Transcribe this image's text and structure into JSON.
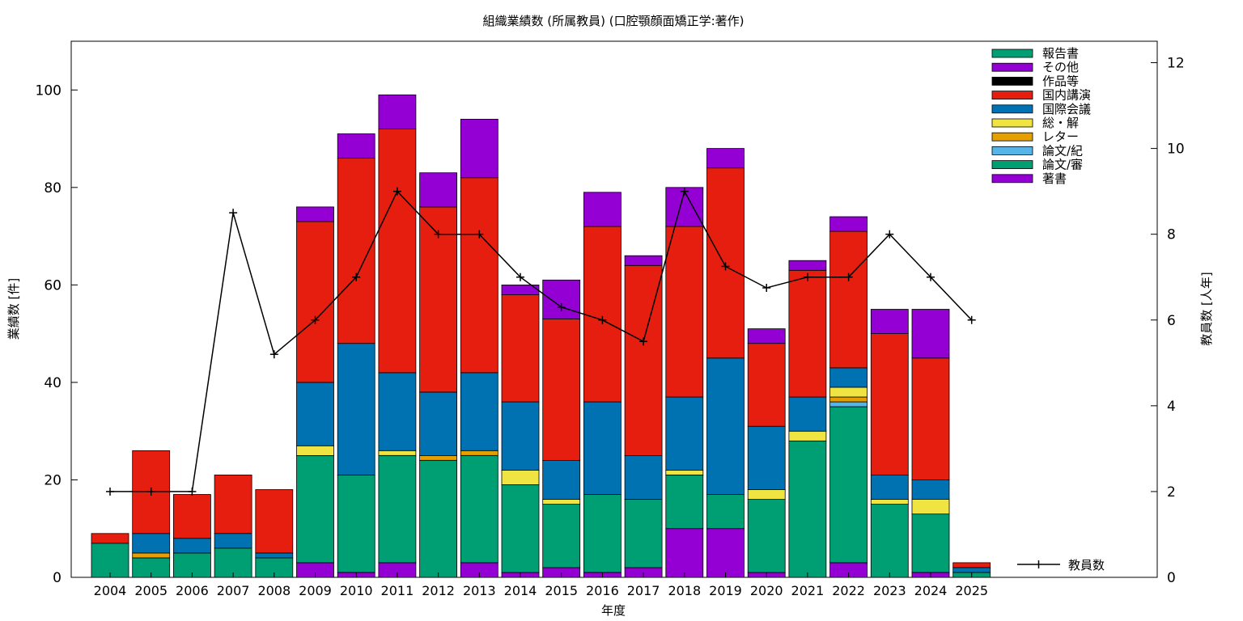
{
  "chart_data": {
    "type": "bar",
    "stacked": true,
    "title": "組織業績数 (所属教員) (口腔顎顔面矯正学:著作)",
    "xlabel": "年度",
    "ylabel": "業績数 [件]",
    "y2label": "教員数 [人年]",
    "ylim": [
      0,
      110
    ],
    "y2lim": [
      0,
      12.5
    ],
    "yticks": [
      0,
      20,
      40,
      60,
      80,
      100
    ],
    "y2ticks": [
      0,
      2,
      4,
      6,
      8,
      10,
      12
    ],
    "grid": false,
    "legend_position": "top-right",
    "categories": [
      "2004",
      "2005",
      "2006",
      "2007",
      "2008",
      "2009",
      "2010",
      "2011",
      "2012",
      "2013",
      "2014",
      "2015",
      "2016",
      "2017",
      "2018",
      "2019",
      "2020",
      "2021",
      "2022",
      "2023",
      "2024",
      "2025"
    ],
    "series": [
      {
        "name": "著書",
        "color": "#9400d3",
        "values": [
          0,
          0,
          0,
          0,
          0,
          3,
          1,
          3,
          0,
          3,
          1,
          2,
          1,
          2,
          10,
          10,
          1,
          0,
          3,
          0,
          1,
          0
        ]
      },
      {
        "name": "論文/審",
        "color": "#009e73",
        "values": [
          7,
          4,
          5,
          6,
          4,
          22,
          20,
          22,
          24,
          22,
          18,
          13,
          16,
          14,
          11,
          7,
          15,
          28,
          32,
          15,
          12,
          1
        ]
      },
      {
        "name": "論文/紀",
        "color": "#56b4e9",
        "values": [
          0,
          0,
          0,
          0,
          0,
          0,
          0,
          0,
          0,
          0,
          0,
          0,
          0,
          0,
          0,
          0,
          0,
          0,
          1,
          0,
          0,
          0
        ]
      },
      {
        "name": "レター",
        "color": "#e69f00",
        "values": [
          0,
          1,
          0,
          0,
          0,
          0,
          0,
          0,
          1,
          1,
          0,
          0,
          0,
          0,
          0,
          0,
          0,
          0,
          1,
          0,
          0,
          0
        ]
      },
      {
        "name": "総・解",
        "color": "#f0e442",
        "values": [
          0,
          0,
          0,
          0,
          0,
          2,
          0,
          1,
          0,
          0,
          3,
          1,
          0,
          0,
          1,
          0,
          2,
          2,
          2,
          1,
          3,
          0
        ]
      },
      {
        "name": "国際会議",
        "color": "#0072b2",
        "values": [
          0,
          4,
          3,
          3,
          1,
          13,
          27,
          16,
          13,
          16,
          14,
          8,
          19,
          9,
          15,
          28,
          13,
          7,
          4,
          5,
          4,
          1
        ]
      },
      {
        "name": "国内講演",
        "color": "#e51e10",
        "values": [
          2,
          17,
          9,
          12,
          13,
          33,
          38,
          50,
          38,
          40,
          22,
          29,
          36,
          39,
          35,
          39,
          17,
          26,
          28,
          29,
          25,
          1
        ]
      },
      {
        "name": "作品等",
        "color": "#000000",
        "values": [
          0,
          0,
          0,
          0,
          0,
          0,
          0,
          0,
          0,
          0,
          0,
          0,
          0,
          0,
          0,
          0,
          0,
          0,
          0,
          0,
          0,
          0
        ]
      },
      {
        "name": "その他",
        "color": "#9400d3",
        "values": [
          0,
          0,
          0,
          0,
          0,
          3,
          5,
          7,
          7,
          12,
          2,
          8,
          7,
          2,
          8,
          4,
          3,
          2,
          3,
          5,
          10,
          0
        ]
      },
      {
        "name": "報告書",
        "color": "#009e73",
        "values": [
          0,
          0,
          0,
          0,
          0,
          0,
          0,
          0,
          0,
          0,
          0,
          0,
          0,
          0,
          0,
          0,
          0,
          0,
          0,
          0,
          0,
          0
        ]
      }
    ],
    "legend_order": [
      "報告書",
      "その他",
      "作品等",
      "国内講演",
      "国際会議",
      "総・解",
      "レター",
      "論文/紀",
      "論文/審",
      "著書"
    ],
    "line_series": {
      "name": "教員数",
      "axis": "right",
      "color": "#000000",
      "values": [
        2,
        2,
        2,
        8.5,
        5.2,
        6,
        7,
        9,
        8,
        8,
        7,
        6.3,
        6,
        5.5,
        9,
        7.25,
        6.75,
        7,
        7,
        8,
        7,
        6
      ]
    }
  }
}
